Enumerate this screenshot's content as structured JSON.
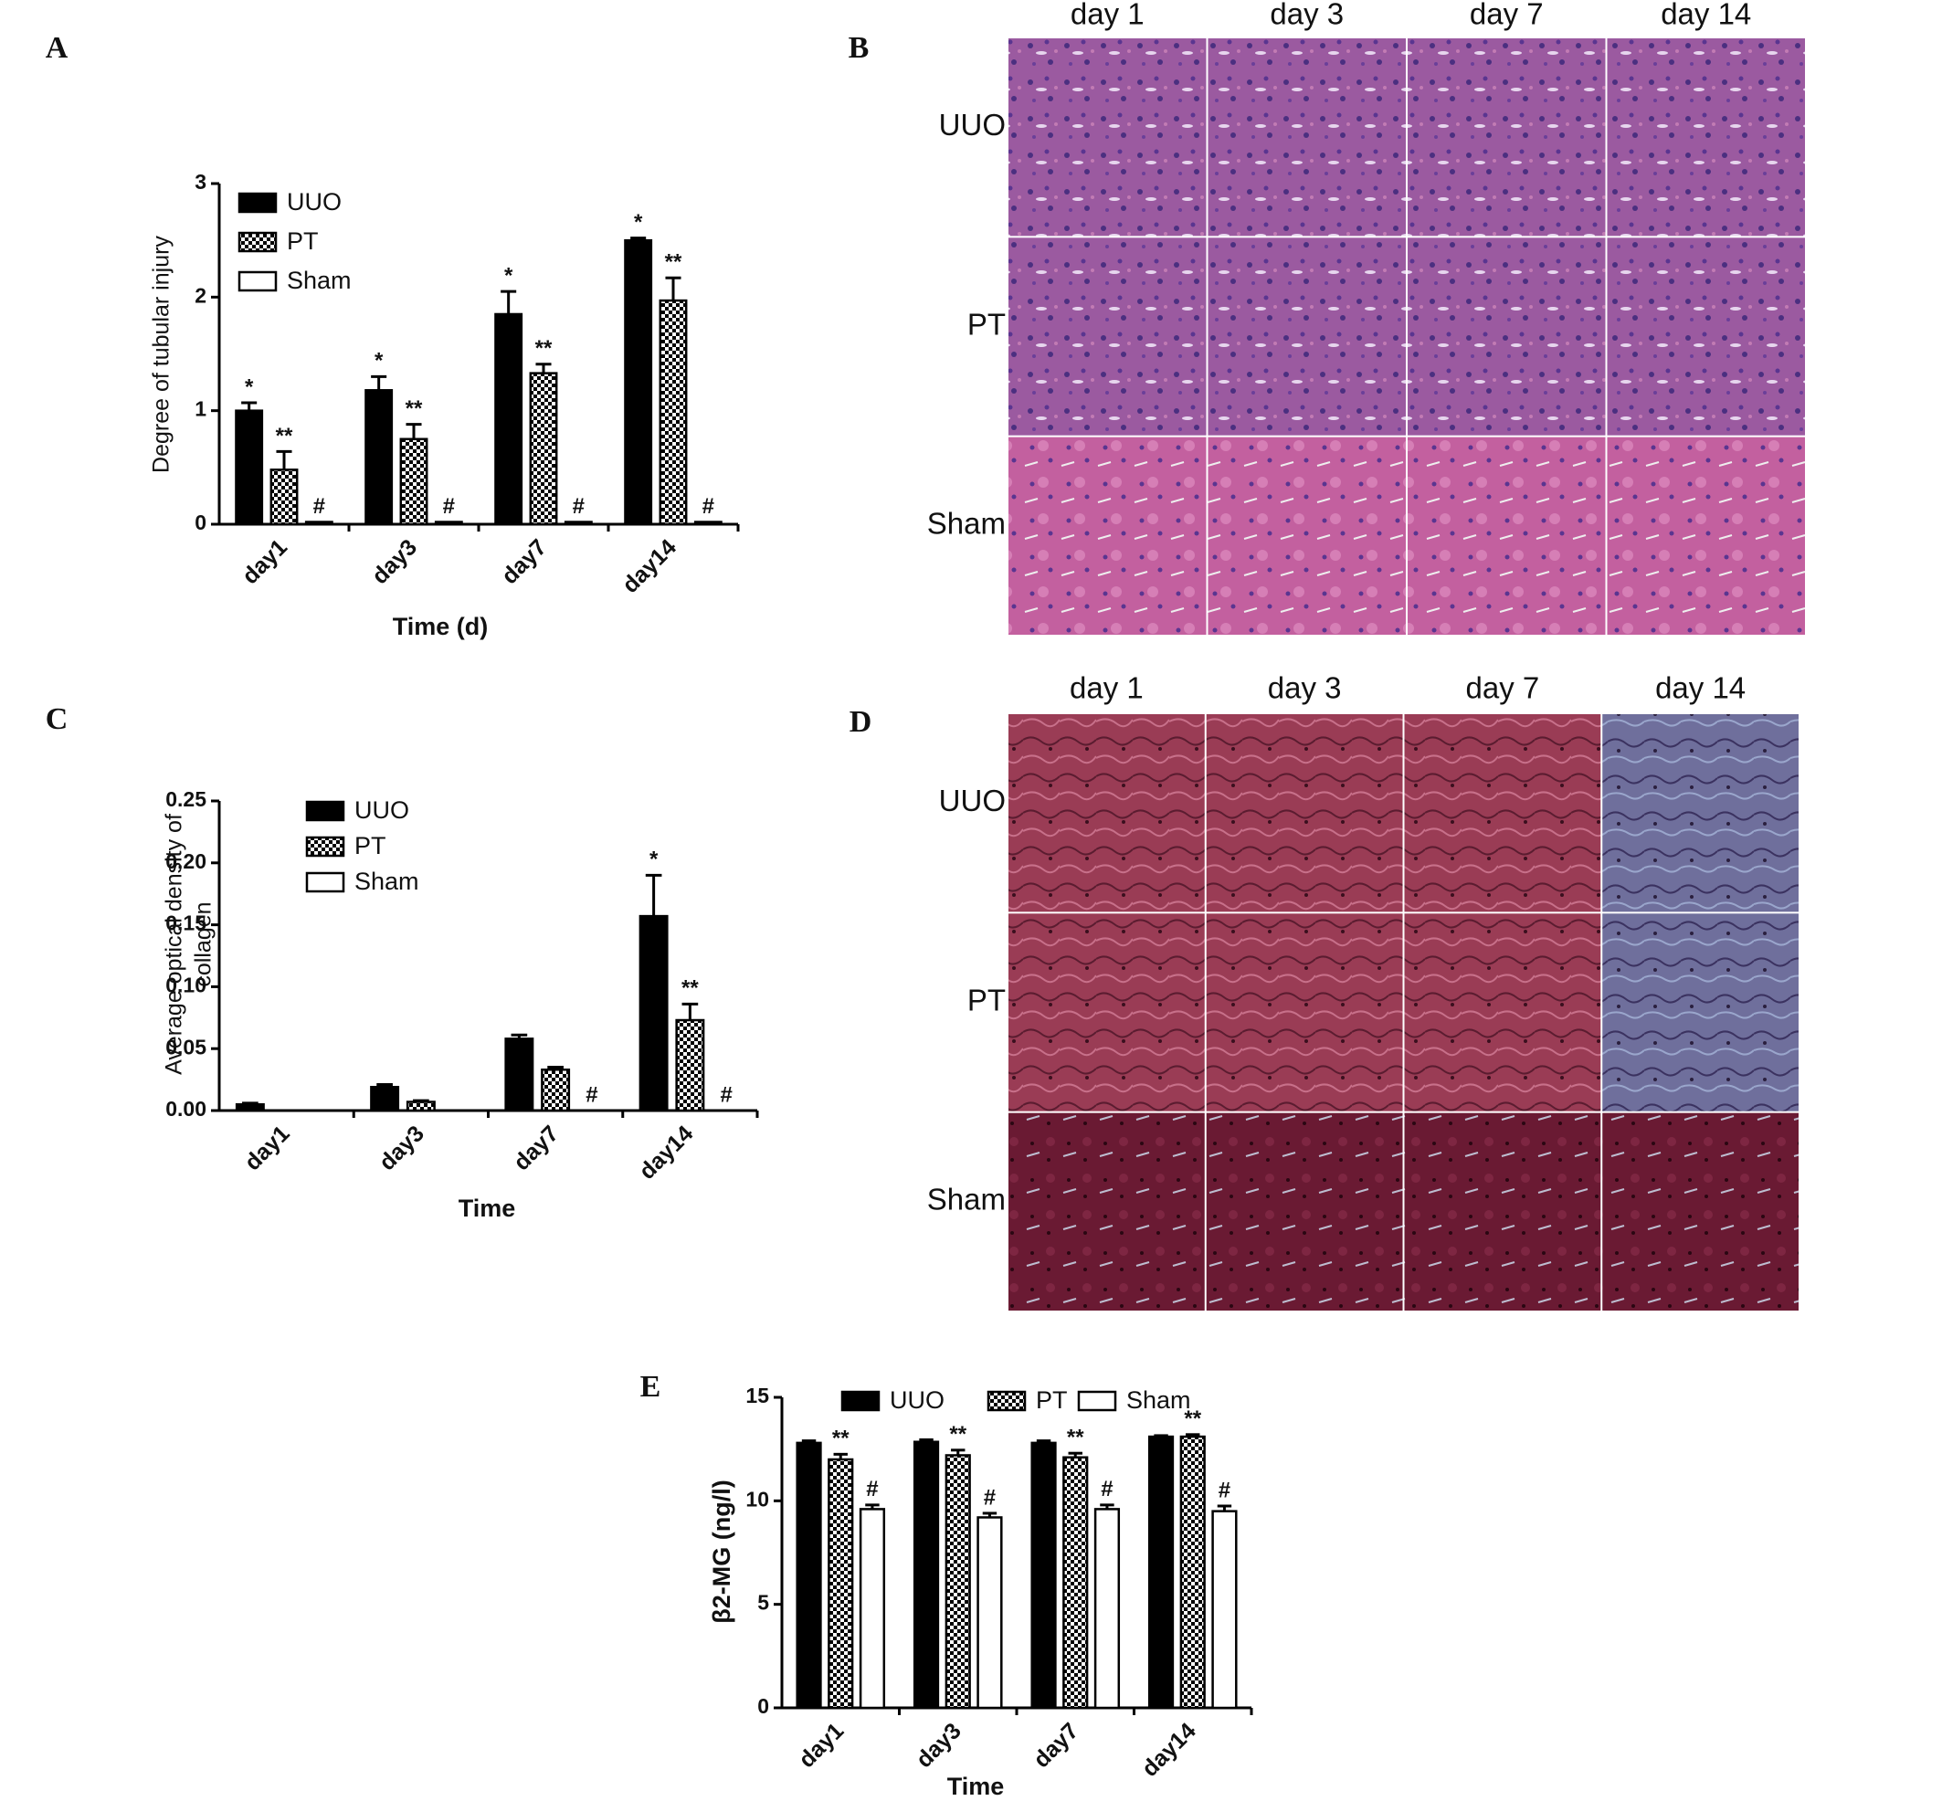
{
  "chart_data": [
    {
      "type": "bar",
      "panel": "A",
      "ylabel": [
        "Degree of tubular injury"
      ],
      "xlabel": "Time (d)",
      "categories": [
        "day1",
        "day3",
        "day7",
        "day14"
      ],
      "ylim": [
        0,
        3
      ],
      "yticks": [
        0,
        1,
        2,
        3
      ],
      "legend": "top-left-vertical",
      "series": [
        {
          "name": "UUO",
          "color": "#000000",
          "values": [
            1.0,
            1.18,
            1.85,
            2.5
          ],
          "errors": [
            0.07,
            0.12,
            0.2,
            0.02
          ],
          "significance": [
            "*",
            "*",
            "*",
            "*"
          ]
        },
        {
          "name": "PT",
          "color": "checker",
          "values": [
            0.48,
            0.75,
            1.33,
            1.97
          ],
          "errors": [
            0.16,
            0.13,
            0.08,
            0.2
          ],
          "significance": [
            "**",
            "**",
            "**",
            "**"
          ]
        },
        {
          "name": "Sham",
          "color": "#ffffff",
          "values": [
            0.02,
            0.02,
            0.02,
            0.02
          ],
          "errors": [
            0.0,
            0.0,
            0.0,
            0.0
          ],
          "significance": [
            "#",
            "#",
            "#",
            "#"
          ]
        }
      ]
    },
    {
      "type": "bar",
      "panel": "C",
      "ylabel": [
        "Average optical density of",
        "collagen"
      ],
      "xlabel": "Time",
      "categories": [
        "day1",
        "day3",
        "day7",
        "day14"
      ],
      "ylim": [
        0,
        0.25
      ],
      "yticks": [
        {
          "value": 0,
          "label": "0.00"
        },
        {
          "value": 0.05,
          "label": "0.05"
        },
        {
          "value": 0.1,
          "label": "0.10"
        },
        {
          "value": 0.15,
          "label": "0.15"
        },
        {
          "value": 0.2,
          "label": "0.20"
        },
        {
          "value": 0.25,
          "label": "0.25"
        }
      ],
      "legend": "top-left-vertical",
      "series": [
        {
          "name": "UUO",
          "color": "#000000",
          "values": [
            0.005,
            0.019,
            0.058,
            0.157
          ],
          "errors": [
            0.001,
            0.002,
            0.003,
            0.033
          ],
          "significance": [
            null,
            null,
            null,
            "*"
          ]
        },
        {
          "name": "PT",
          "color": "checker",
          "values": [
            0,
            0.007,
            0.033,
            0.073
          ],
          "errors": [
            0,
            0.001,
            0.002,
            0.013
          ],
          "significance": [
            null,
            null,
            null,
            "**"
          ]
        },
        {
          "name": "Sham",
          "color": "#ffffff",
          "values": [
            0,
            0,
            0,
            0
          ],
          "errors": [
            0,
            0,
            0,
            0
          ],
          "significance": [
            null,
            null,
            "#",
            "#"
          ]
        }
      ]
    },
    {
      "type": "bar",
      "panel": "E",
      "ylabel": [
        "β2-MG (ng/l)"
      ],
      "xlabel": "Time",
      "categories": [
        "day1",
        "day3",
        "day7",
        "day14"
      ],
      "ylim": [
        0,
        15
      ],
      "yticks": [
        0,
        5,
        10,
        15
      ],
      "legend": "top-horizontal",
      "series": [
        {
          "name": "UUO",
          "color": "#000000",
          "values": [
            12.8,
            12.85,
            12.8,
            13.1
          ],
          "errors": [
            0.1,
            0.1,
            0.1,
            0.05
          ],
          "significance": [
            null,
            null,
            null,
            null
          ]
        },
        {
          "name": "PT",
          "color": "checker",
          "values": [
            12.0,
            12.2,
            12.1,
            13.1
          ],
          "errors": [
            0.25,
            0.25,
            0.2,
            0.1
          ],
          "significance": [
            "**",
            "**",
            "**",
            "**"
          ]
        },
        {
          "name": "Sham",
          "color": "#ffffff",
          "values": [
            9.6,
            9.2,
            9.6,
            9.5
          ],
          "errors": [
            0.2,
            0.2,
            0.2,
            0.25
          ],
          "significance": [
            "#",
            "#",
            "#",
            "#"
          ]
        }
      ]
    }
  ],
  "micrographs": [
    {
      "panel": "B",
      "columns": [
        "day 1",
        "day 3",
        "day 7",
        "day 14"
      ],
      "rows": [
        "UUO",
        "PT",
        "Sham"
      ]
    },
    {
      "panel": "D",
      "columns": [
        "day 1",
        "day 3",
        "day 7",
        "day 14"
      ],
      "rows": [
        "UUO",
        "PT",
        "Sham"
      ]
    }
  ]
}
